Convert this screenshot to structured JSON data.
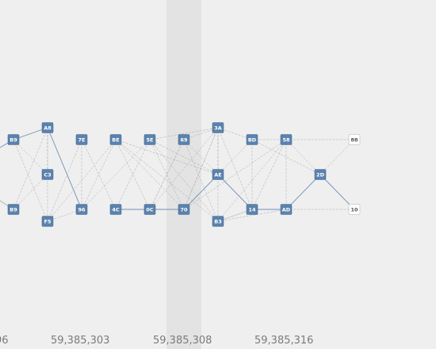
{
  "colors": {
    "background": "#efefef",
    "highlight_band": "#e3e3e3",
    "node_fill": "#5b82ad",
    "node_text": "#ffffff",
    "terminal_fill": "#ffffff",
    "terminal_text": "#555555",
    "edge": "#a9a9a9",
    "edge_highlight": "#6f8fb3",
    "axis_text": "#7b7b7b"
  },
  "axis": {
    "labels": [
      "96",
      "59,385,303",
      "59,385,308",
      "59,385,316"
    ]
  },
  "nodes": [
    {
      "id": "B9a",
      "label": "B9",
      "style": "block"
    },
    {
      "id": "A8",
      "label": "A8",
      "style": "block"
    },
    {
      "id": "7E",
      "label": "7E",
      "style": "block"
    },
    {
      "id": "BE",
      "label": "BE",
      "style": "block"
    },
    {
      "id": "5E",
      "label": "5E",
      "style": "block"
    },
    {
      "id": "69",
      "label": "69",
      "style": "block"
    },
    {
      "id": "3A",
      "label": "3A",
      "style": "block"
    },
    {
      "id": "BD",
      "label": "BD",
      "style": "block"
    },
    {
      "id": "58",
      "label": "58",
      "style": "block"
    },
    {
      "id": "88",
      "label": "88",
      "style": "terminal"
    },
    {
      "id": "C3",
      "label": "C3",
      "style": "block"
    },
    {
      "id": "AE",
      "label": "AE",
      "style": "block"
    },
    {
      "id": "2D",
      "label": "2D",
      "style": "block"
    },
    {
      "id": "B9b",
      "label": "B9",
      "style": "block"
    },
    {
      "id": "96",
      "label": "96",
      "style": "block"
    },
    {
      "id": "4C",
      "label": "4C",
      "style": "block"
    },
    {
      "id": "0C",
      "label": "0C",
      "style": "block"
    },
    {
      "id": "70",
      "label": "70",
      "style": "block"
    },
    {
      "id": "14",
      "label": "14",
      "style": "block"
    },
    {
      "id": "AD",
      "label": "AD",
      "style": "block"
    },
    {
      "id": "10",
      "label": "10",
      "style": "terminal"
    },
    {
      "id": "F5",
      "label": "F5",
      "style": "block"
    },
    {
      "id": "B3",
      "label": "B3",
      "style": "block"
    }
  ],
  "edges": [
    [
      "B9a",
      "A8",
      true
    ],
    [
      "A8",
      "96",
      true
    ],
    [
      "A8",
      "F5",
      false
    ],
    [
      "A8",
      "C3",
      false
    ],
    [
      "B9a",
      "F5",
      false
    ],
    [
      "B9a",
      "C3",
      false
    ],
    [
      "B9b",
      "C3",
      false
    ],
    [
      "B9b",
      "A8",
      false
    ],
    [
      "F5",
      "7E",
      false
    ],
    [
      "F5",
      "BE",
      false
    ],
    [
      "F5",
      "96",
      false
    ],
    [
      "7E",
      "4C",
      false
    ],
    [
      "7E",
      "96",
      false
    ],
    [
      "BE",
      "96",
      false
    ],
    [
      "BE",
      "0C",
      false
    ],
    [
      "BE",
      "AE",
      false
    ],
    [
      "BE",
      "70",
      false
    ],
    [
      "BE",
      "B3",
      false
    ],
    [
      "5E",
      "4C",
      false
    ],
    [
      "5E",
      "AE",
      false
    ],
    [
      "5E",
      "3A",
      false
    ],
    [
      "5E",
      "70",
      false
    ],
    [
      "5E",
      "B3",
      false
    ],
    [
      "69",
      "AE",
      false
    ],
    [
      "69",
      "B3",
      false
    ],
    [
      "69",
      "3A",
      false
    ],
    [
      "69",
      "0C",
      false
    ],
    [
      "3A",
      "BD",
      false
    ],
    [
      "3A",
      "AE",
      false
    ],
    [
      "3A",
      "70",
      false
    ],
    [
      "3A",
      "14",
      false
    ],
    [
      "3A",
      "B3",
      false
    ],
    [
      "AE",
      "14",
      true
    ],
    [
      "AE",
      "70",
      true
    ],
    [
      "AE",
      "BD",
      false
    ],
    [
      "70",
      "4C",
      true
    ],
    [
      "70",
      "3A",
      false
    ],
    [
      "70",
      "58",
      false
    ],
    [
      "BD",
      "58",
      false
    ],
    [
      "BD",
      "14",
      false
    ],
    [
      "BD",
      "2D",
      false
    ],
    [
      "58",
      "88",
      false
    ],
    [
      "58",
      "2D",
      false
    ],
    [
      "58",
      "14",
      false
    ],
    [
      "58",
      "AD",
      false
    ],
    [
      "2D",
      "10",
      true
    ],
    [
      "2D",
      "AD",
      true
    ],
    [
      "2D",
      "88",
      false
    ],
    [
      "AD",
      "14",
      true
    ],
    [
      "AD",
      "10",
      false
    ],
    [
      "B3",
      "14",
      false
    ],
    [
      "B3",
      "AD",
      false
    ],
    [
      "B3",
      "58",
      false
    ],
    [
      "0C",
      "69",
      false
    ],
    [
      "0C",
      "3A",
      false
    ],
    [
      "14",
      "B3",
      false
    ],
    [
      "96",
      "5E",
      false
    ]
  ]
}
